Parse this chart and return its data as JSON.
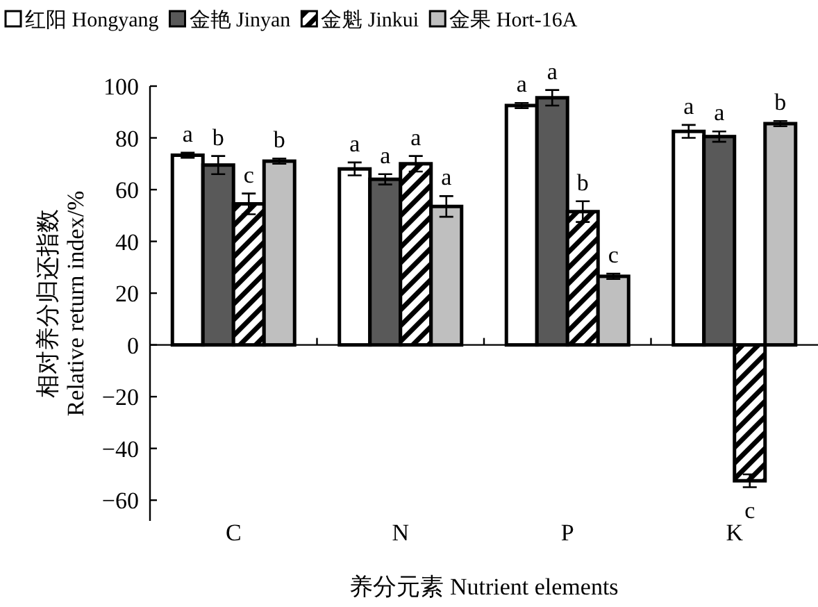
{
  "chart_data": {
    "type": "bar",
    "xlabel": "养分元素 Nutrient elements",
    "ylabel": "相对养分归还指数\nRelative return index/%",
    "categories": [
      "C",
      "N",
      "P",
      "K"
    ],
    "series": [
      {
        "name": "红阳 Hongyang",
        "color": "#ffffff",
        "values": [
          73.3,
          68,
          92.5,
          82.5
        ],
        "errors": [
          1,
          2.5,
          1,
          2.5
        ],
        "value_labels": [
          "a",
          "a",
          "a",
          "a"
        ]
      },
      {
        "name": "金艳 Jinyan",
        "color": "#595959",
        "values": [
          69.5,
          64,
          95.5,
          80.5
        ],
        "errors": [
          3.5,
          2,
          3,
          2
        ],
        "value_labels": [
          "b",
          "a",
          "a",
          "a"
        ]
      },
      {
        "name": "金魁 Jinkui",
        "color": "#000000",
        "values": [
          54.5,
          70,
          51.5,
          -52.5
        ],
        "errors": [
          4,
          3,
          4,
          2.5
        ],
        "value_labels": [
          "c",
          "a",
          "b",
          "c"
        ]
      },
      {
        "name": "金果 Hort-16A",
        "color": "#bfbfbf",
        "values": [
          71,
          53.5,
          26.5,
          85.5
        ],
        "errors": [
          1,
          4,
          1,
          1
        ],
        "value_labels": [
          "b",
          "a",
          "c",
          "b"
        ]
      }
    ],
    "ylim": [
      -68,
      100
    ],
    "yticks": [
      -60,
      -40,
      -20,
      0,
      20,
      40,
      60,
      80,
      100
    ],
    "legend": "top"
  }
}
